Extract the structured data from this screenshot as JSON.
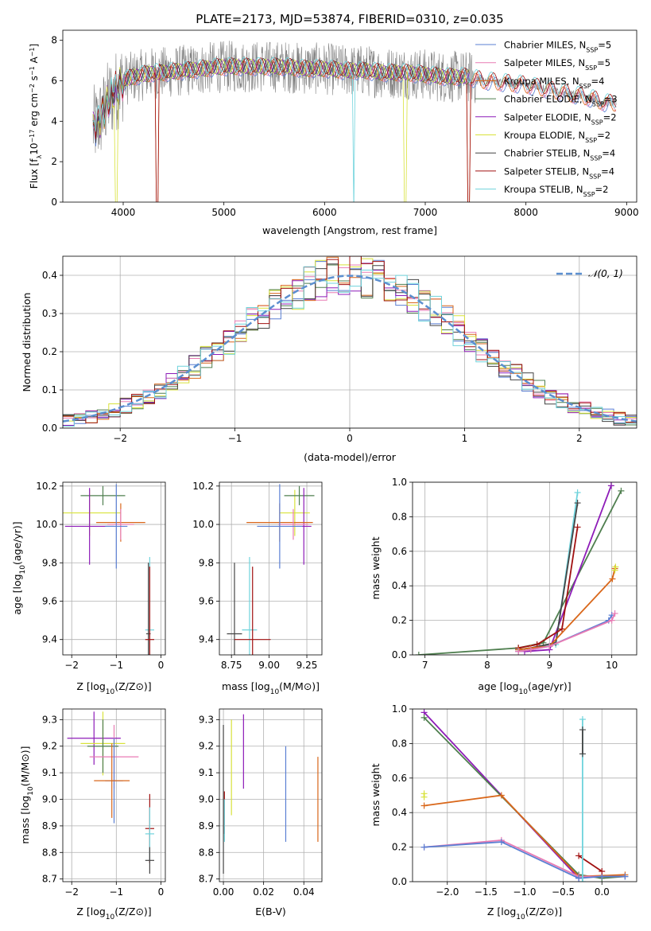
{
  "colors": {
    "Chabrier MILES": "#5a7fd3",
    "Salpeter MILES": "#e87bb4",
    "Kroupa MILES": "#d9671a",
    "Chabrier ELODIE": "#4f7f4f",
    "Salpeter ELODIE": "#8e1cb8",
    "Kroupa ELODIE": "#d8e23a",
    "Chabrier STELIB": "#444444",
    "Salpeter STELIB": "#a01010",
    "Kroupa STELIB": "#6fd3dc",
    "data": "#808080",
    "normal": "#5b8fd0"
  },
  "chart_data": [
    {
      "id": "spectrum",
      "type": "line",
      "title": "PLATE=2173, MJD=53874, FIBERID=0310, z=0.035",
      "xlabel": "wavelength [Angstrom, rest frame]",
      "ylabel": "Flux [f",
      "ylabel_sub": "λ",
      "ylabel_rest": "10",
      "ylabel_sup1": "−17",
      "ylabel_rest2": " erg cm",
      "ylabel_sup2": "−2",
      "ylabel_rest3": " s",
      "ylabel_sup3": "−1",
      "ylabel_rest4": " A",
      "ylabel_sup4": "−1",
      "ylabel_end": "]",
      "xlim": [
        3400,
        9100
      ],
      "ylim": [
        0,
        8.5
      ],
      "xticks": [
        4000,
        5000,
        6000,
        7000,
        8000,
        9000
      ],
      "yticks": [
        0,
        2,
        4,
        6,
        8
      ],
      "legend_position": "top-right",
      "legend": [
        {
          "name": "Chabrier MILES",
          "nssp": "5"
        },
        {
          "name": "Salpeter MILES",
          "nssp": "5"
        },
        {
          "name": "Kroupa MILES",
          "nssp": "4"
        },
        {
          "name": "Chabrier ELODIE",
          "nssp": "3"
        },
        {
          "name": "Salpeter ELODIE",
          "nssp": "2"
        },
        {
          "name": "Kroupa ELODIE",
          "nssp": "2"
        },
        {
          "name": "Chabrier STELIB",
          "nssp": "4"
        },
        {
          "name": "Salpeter STELIB",
          "nssp": "4"
        },
        {
          "name": "Kroupa STELIB",
          "nssp": "2"
        }
      ],
      "model_x": [
        3700,
        3750,
        3800,
        3850,
        3900,
        4000,
        4100,
        4200,
        4300,
        4400,
        4600,
        4800,
        5000,
        5200,
        5400,
        5600,
        5800,
        6000,
        6200,
        6400,
        6600,
        6800,
        7000,
        7200,
        7400,
        7600,
        7800,
        8000,
        8200,
        8400,
        8600,
        8800
      ],
      "model_y": [
        3.7,
        3.9,
        4.4,
        5.0,
        5.3,
        6.0,
        6.2,
        6.3,
        6.4,
        6.4,
        6.5,
        6.6,
        6.7,
        6.7,
        6.7,
        6.7,
        6.6,
        6.6,
        6.5,
        6.5,
        6.4,
        6.4,
        6.3,
        6.2,
        6.2,
        6.0,
        5.9,
        5.8,
        5.6,
        5.4,
        5.2,
        4.9
      ],
      "data_noise_amplitude": 1.3
    },
    {
      "id": "residuals",
      "type": "line",
      "xlabel": "(data-model)/error",
      "ylabel": "Normed distribution",
      "xlim": [
        -2.5,
        2.5
      ],
      "ylim": [
        0,
        0.45
      ],
      "xticks": [
        -2,
        -1,
        0,
        1,
        2
      ],
      "yticks": [
        0.0,
        0.1,
        0.2,
        0.3,
        0.4
      ],
      "legend_position": "top-right",
      "legend": [
        {
          "name": "𝒩(0, 1)"
        }
      ],
      "grid": true
    },
    {
      "id": "age_vs_Z",
      "type": "scatter",
      "xlabel": "Z [log10(Z/Z⊙)]",
      "ylabel": "age  [log10(age/yr)]",
      "xlim": [
        -2.2,
        0.1
      ],
      "ylim": [
        9.32,
        10.22
      ],
      "xticks": [
        -2,
        -1,
        0
      ],
      "yticks": [
        9.4,
        9.6,
        9.8,
        10.0,
        10.2
      ],
      "grid": true,
      "points": [
        {
          "model": "Kroupa ELODIE",
          "x": -1.6,
          "y": 10.06,
          "xerr": 0.7,
          "yerr": 0.12
        },
        {
          "model": "Chabrier ELODIE",
          "x": -1.3,
          "y": 10.15,
          "xerr": 0.5,
          "yerr": 0.05
        },
        {
          "model": "Salpeter ELODIE",
          "x": -1.6,
          "y": 9.99,
          "xerr": 0.55,
          "yerr": 0.2
        },
        {
          "model": "Kroupa MILES",
          "x": -0.9,
          "y": 10.01,
          "xerr": 0.55,
          "yerr": 0.1
        },
        {
          "model": "Salpeter MILES",
          "x": -0.9,
          "y": 10.0,
          "xerr": 0.3,
          "yerr": 0.08
        },
        {
          "model": "Chabrier MILES",
          "x": -1.0,
          "y": 9.99,
          "xerr": 0.25,
          "yerr": 0.22
        },
        {
          "model": "Kroupa STELIB",
          "x": -0.25,
          "y": 9.45,
          "xerr": 0.1,
          "yerr": 0.38
        },
        {
          "model": "Chabrier STELIB",
          "x": -0.28,
          "y": 9.43,
          "xerr": 0.05,
          "yerr": 0.37
        },
        {
          "model": "Salpeter STELIB",
          "x": -0.25,
          "y": 9.4,
          "xerr": 0.1,
          "yerr": 0.38
        }
      ]
    },
    {
      "id": "age_vs_mass",
      "type": "scatter",
      "xlabel": "mass [log10(M/M⊙)]",
      "ylabel": "",
      "xlim": [
        8.67,
        9.35
      ],
      "ylim": [
        9.32,
        10.22
      ],
      "xticks": [
        8.75,
        9.0,
        9.25
      ],
      "yticks": [
        9.4,
        9.6,
        9.8,
        10.0,
        10.2
      ],
      "grid": true,
      "points": [
        {
          "model": "Kroupa ELODIE",
          "x": 9.17,
          "y": 10.06,
          "xerr": 0.1,
          "yerr": 0.12
        },
        {
          "model": "Chabrier ELODIE",
          "x": 9.2,
          "y": 10.15,
          "xerr": 0.1,
          "yerr": 0.05
        },
        {
          "model": "Salpeter ELODIE",
          "x": 9.23,
          "y": 9.99,
          "xerr": 0.05,
          "yerr": 0.2
        },
        {
          "model": "Kroupa MILES",
          "x": 9.07,
          "y": 10.01,
          "xerr": 0.22,
          "yerr": 0.1
        },
        {
          "model": "Salpeter MILES",
          "x": 9.16,
          "y": 10.0,
          "xerr": 0.1,
          "yerr": 0.08
        },
        {
          "model": "Chabrier MILES",
          "x": 9.07,
          "y": 9.99,
          "xerr": 0.15,
          "yerr": 0.22
        },
        {
          "model": "Kroupa STELIB",
          "x": 8.87,
          "y": 9.45,
          "xerr": 0.05,
          "yerr": 0.38
        },
        {
          "model": "Chabrier STELIB",
          "x": 8.77,
          "y": 9.43,
          "xerr": 0.05,
          "yerr": 0.37
        },
        {
          "model": "Salpeter STELIB",
          "x": 8.89,
          "y": 9.4,
          "xerr": 0.12,
          "yerr": 0.38
        }
      ]
    },
    {
      "id": "weight_vs_age",
      "type": "line",
      "xlabel": "age  [log10(age/yr)]",
      "ylabel": "mass weight",
      "xlim": [
        6.8,
        10.4
      ],
      "ylim": [
        0,
        1.0
      ],
      "xticks": [
        7,
        8,
        9,
        10
      ],
      "yticks": [
        0.0,
        0.2,
        0.4,
        0.6,
        0.8,
        1.0
      ],
      "grid": true,
      "series": [
        {
          "model": "Chabrier ELODIE",
          "x": [
            6.9,
            8.5,
            8.9,
            10.15
          ],
          "y": [
            0.0,
            0.04,
            0.07,
            0.95
          ]
        },
        {
          "model": "Salpeter ELODIE",
          "x": [
            8.6,
            9.0,
            9.99
          ],
          "y": [
            0.02,
            0.03,
            0.98
          ]
        },
        {
          "model": "Kroupa STELIB",
          "x": [
            8.5,
            8.7,
            9.1,
            9.45
          ],
          "y": [
            0.03,
            0.04,
            0.06,
            0.94
          ]
        },
        {
          "model": "Chabrier STELIB",
          "x": [
            8.5,
            8.7,
            9.1,
            9.45
          ],
          "y": [
            0.03,
            0.04,
            0.07,
            0.88
          ]
        },
        {
          "model": "Salpeter STELIB",
          "x": [
            8.5,
            8.8,
            9.2,
            9.45
          ],
          "y": [
            0.04,
            0.06,
            0.15,
            0.74
          ]
        },
        {
          "model": "Kroupa MILES",
          "x": [
            8.5,
            8.7,
            9.0,
            10.01,
            10.05
          ],
          "y": [
            0.03,
            0.04,
            0.05,
            0.44,
            0.5
          ]
        },
        {
          "model": "Kroupa ELODIE",
          "x": [
            10.05,
            10.06
          ],
          "y": [
            0.49,
            0.51
          ]
        },
        {
          "model": "Chabrier MILES",
          "x": [
            8.5,
            8.7,
            9.0,
            9.95,
            10.0
          ],
          "y": [
            0.02,
            0.03,
            0.05,
            0.2,
            0.23
          ]
        },
        {
          "model": "Salpeter MILES",
          "x": [
            8.5,
            8.7,
            9.0,
            10.0,
            10.05
          ],
          "y": [
            0.02,
            0.03,
            0.05,
            0.2,
            0.24
          ]
        }
      ]
    },
    {
      "id": "mass_vs_Z",
      "type": "scatter",
      "xlabel": "Z [log10(Z/Z⊙)]",
      "ylabel": "mass [log10(M/M⊙)]",
      "xlim": [
        -2.2,
        0.1
      ],
      "ylim": [
        8.69,
        9.34
      ],
      "xticks": [
        -2,
        -1,
        0
      ],
      "yticks": [
        8.7,
        8.8,
        8.9,
        9.0,
        9.1,
        9.2,
        9.3
      ],
      "grid": true,
      "points": [
        {
          "model": "Salpeter ELODIE",
          "x": -1.5,
          "y": 9.23,
          "xerr": 0.6,
          "yerr": 0.1
        },
        {
          "model": "Kroupa ELODIE",
          "x": -1.3,
          "y": 9.21,
          "xerr": 0.5,
          "yerr": 0.12
        },
        {
          "model": "Chabrier ELODIE",
          "x": -1.3,
          "y": 9.2,
          "xerr": 0.35,
          "yerr": 0.1
        },
        {
          "model": "Salpeter MILES",
          "x": -1.05,
          "y": 9.16,
          "xerr": 0.55,
          "yerr": 0.12
        },
        {
          "model": "Chabrier MILES",
          "x": -1.05,
          "y": 9.07,
          "xerr": 0.2,
          "yerr": 0.16
        },
        {
          "model": "Kroupa MILES",
          "x": -1.1,
          "y": 9.07,
          "xerr": 0.4,
          "yerr": 0.14
        },
        {
          "model": "Salpeter STELIB",
          "x": -0.25,
          "y": 8.89,
          "xerr": 0.1,
          "yerr": 0.13
        },
        {
          "model": "Kroupa STELIB",
          "x": -0.25,
          "y": 8.87,
          "xerr": 0.1,
          "yerr": 0.1
        },
        {
          "model": "Chabrier STELIB",
          "x": -0.25,
          "y": 8.77,
          "xerr": 0.1,
          "yerr": 0.05
        }
      ]
    },
    {
      "id": "mass_vs_ebv",
      "type": "scatter",
      "xlabel": "E(B-V)",
      "ylabel": "",
      "xlim": [
        -0.002,
        0.049
      ],
      "ylim": [
        8.69,
        9.34
      ],
      "xticks": [
        0.0,
        0.02,
        0.04
      ],
      "yticks": [
        8.7,
        8.8,
        8.9,
        9.0,
        9.1,
        9.2,
        9.3
      ],
      "grid": true,
      "points": [
        {
          "model": "Chabrier STELIB",
          "x": 0.0,
          "y": 9.0,
          "xerr": 0,
          "yerr": 0.28
        },
        {
          "model": "Salpeter STELIB",
          "x": 0.0005,
          "y": 8.95,
          "xerr": 0,
          "yerr": 0.08
        },
        {
          "model": "Kroupa STELIB",
          "x": 0.0005,
          "y": 8.92,
          "xerr": 0,
          "yerr": 0.08
        },
        {
          "model": "Kroupa ELODIE",
          "x": 0.004,
          "y": 9.12,
          "xerr": 0,
          "yerr": 0.18
        },
        {
          "model": "Salpeter ELODIE",
          "x": 0.01,
          "y": 9.18,
          "xerr": 0,
          "yerr": 0.14
        },
        {
          "model": "Chabrier MILES",
          "x": 0.031,
          "y": 9.02,
          "xerr": 0,
          "yerr": 0.18
        },
        {
          "model": "Kroupa MILES",
          "x": 0.047,
          "y": 9.0,
          "xerr": 0,
          "yerr": 0.16
        }
      ]
    },
    {
      "id": "weight_vs_Z",
      "type": "line",
      "xlabel": "Z [log10(Z/Z⊙)]",
      "ylabel": "mass weight",
      "xlim": [
        -2.45,
        0.45
      ],
      "ylim": [
        0,
        1.0
      ],
      "xticks": [
        -2.0,
        -1.5,
        -1.0,
        -0.5,
        0.0
      ],
      "yticks": [
        0.0,
        0.2,
        0.4,
        0.6,
        0.8,
        1.0
      ],
      "grid": true,
      "series": [
        {
          "model": "Salpeter ELODIE",
          "x": [
            -2.3,
            -0.3
          ],
          "y": [
            0.98,
            0.02
          ]
        },
        {
          "model": "Chabrier ELODIE",
          "x": [
            -2.3,
            -0.3,
            0.0,
            0.3
          ],
          "y": [
            0.95,
            0.04,
            0.02,
            0.03
          ]
        },
        {
          "model": "Kroupa MILES",
          "x": [
            -2.3,
            -1.3,
            -0.3,
            0.3
          ],
          "y": [
            0.44,
            0.5,
            0.03,
            0.04
          ]
        },
        {
          "model": "Kroupa ELODIE",
          "x": [
            -2.3,
            -2.3
          ],
          "y": [
            0.49,
            0.51
          ]
        },
        {
          "model": "Salpeter MILES",
          "x": [
            -2.3,
            -1.3,
            -0.3,
            0.0,
            0.3
          ],
          "y": [
            0.2,
            0.24,
            0.03,
            0.03,
            0.03
          ]
        },
        {
          "model": "Chabrier MILES",
          "x": [
            -2.3,
            -1.3,
            -0.3,
            0.0,
            0.3
          ],
          "y": [
            0.2,
            0.23,
            0.02,
            0.03,
            0.03
          ]
        },
        {
          "model": "Salpeter STELIB",
          "x": [
            -0.3,
            0.0
          ],
          "y": [
            0.15,
            0.06
          ]
        },
        {
          "model": "Kroupa STELIB",
          "x": [
            -0.25,
            -0.25
          ],
          "y": [
            0.0,
            0.94
          ]
        },
        {
          "model": "Chabrier STELIB",
          "x": [
            -0.25,
            -0.25
          ],
          "y": [
            0.74,
            0.88
          ]
        }
      ]
    }
  ]
}
